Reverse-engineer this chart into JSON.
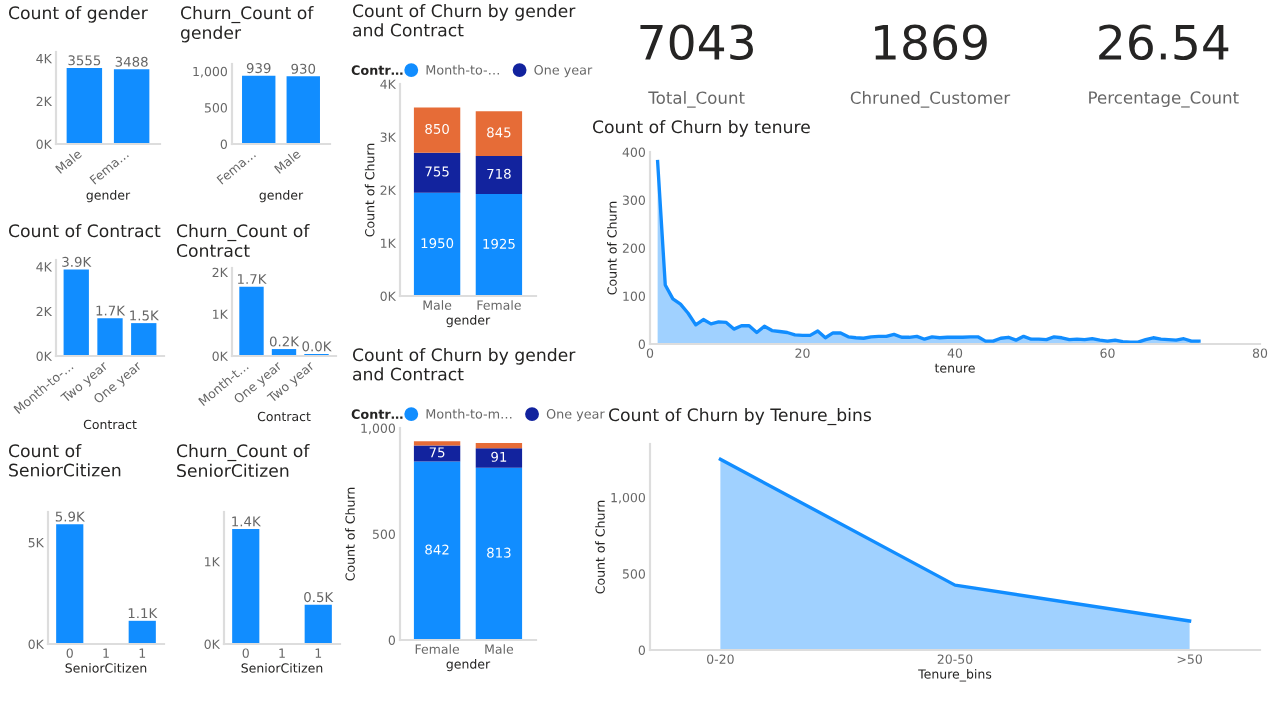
{
  "chart_data": [
    {
      "type": "bar",
      "title": "Count of gender",
      "xlabel": "gender",
      "categories": [
        "Male",
        "Fema…"
      ],
      "values": [
        3555,
        3488
      ],
      "color": "#118dff",
      "data_labels": true,
      "ylim": [
        0,
        4300
      ],
      "yticks": [
        {
          "value": 0,
          "label": "0K"
        },
        {
          "value": 2000,
          "label": "2K"
        },
        {
          "value": 4000,
          "label": "4K"
        }
      ]
    },
    {
      "type": "bar",
      "title": "Churn_Count of\ngender",
      "xlabel": "gender",
      "categories": [
        "Fema…",
        "Male"
      ],
      "values": [
        939,
        930
      ],
      "color": "#118dff",
      "data_labels": true,
      "ylim": [
        0,
        1100
      ],
      "yticks": [
        0,
        500,
        {
          "value": 1000,
          "label": "1,000"
        }
      ]
    },
    {
      "type": "bar",
      "title": "Count of Contract",
      "xlabel": "Contract",
      "categories": [
        "Month-to-…",
        "Two year",
        "One year"
      ],
      "values": [
        3875,
        1695,
        1473
      ],
      "value_labels": [
        "3.9K",
        "1.7K",
        "1.5K"
      ],
      "color": "#118dff",
      "ylim": [
        0,
        4300
      ],
      "yticks": [
        {
          "value": 0,
          "label": "0K"
        },
        {
          "value": 2000,
          "label": "2K"
        },
        {
          "value": 4000,
          "label": "4K"
        }
      ]
    },
    {
      "type": "bar",
      "title": "Churn_Count of\nContract",
      "xlabel": "Contract",
      "categories": [
        "Month-t…",
        "One year",
        "Two year"
      ],
      "values": [
        1655,
        166,
        48
      ],
      "value_labels": [
        "1.7K",
        "0.2K",
        "0.0K"
      ],
      "color": "#118dff",
      "ylim": [
        0,
        2100
      ],
      "yticks": [
        {
          "value": 0,
          "label": "0K"
        },
        {
          "value": 1000,
          "label": "1K"
        },
        {
          "value": 2000,
          "label": "2K"
        }
      ]
    },
    {
      "type": "bar",
      "title": "Count of\nSeniorCitizen",
      "xlabel": "SeniorCitizen",
      "categories": [
        "0",
        "1",
        "1"
      ],
      "values": [
        5901,
        null,
        1142
      ],
      "value_labels": [
        "5.9K",
        null,
        "1.1K"
      ],
      "color": "#118dff",
      "ylim": [
        0,
        6500
      ],
      "yticks": [
        {
          "value": 0,
          "label": "0K"
        },
        {
          "value": 5000,
          "label": "5K"
        }
      ]
    },
    {
      "type": "bar",
      "title": "Churn_Count of\nSeniorCitizen",
      "xlabel": "SeniorCitizen",
      "categories": [
        "0",
        "1",
        "1"
      ],
      "values": [
        1393,
        null,
        476
      ],
      "value_labels": [
        "1.4K",
        null,
        "0.5K"
      ],
      "color": "#118dff",
      "ylim": [
        0,
        1600
      ],
      "yticks": [
        {
          "value": 0,
          "label": "0K"
        },
        {
          "value": 1000,
          "label": "1K"
        }
      ]
    },
    {
      "type": "bar",
      "stacked": true,
      "title": "Count of Churn by gender\nand Contract",
      "xlabel": "gender",
      "ylabel": "Count of Churn",
      "legend": "top",
      "legend_title": "Contr…",
      "data_labels": true,
      "categories": [
        "Male",
        "Female"
      ],
      "ylim": [
        0,
        4000
      ],
      "yticks": [
        {
          "value": 0,
          "label": "0K"
        },
        {
          "value": 1000,
          "label": "1K"
        },
        {
          "value": 2000,
          "label": "2K"
        },
        {
          "value": 3000,
          "label": "3K"
        },
        {
          "value": 4000,
          "label": "4K"
        }
      ],
      "series": [
        {
          "name": "Month-to-…",
          "color": "#118dff",
          "values": [
            1950,
            1925
          ]
        },
        {
          "name": "One year",
          "color": "#12239e",
          "values": [
            755,
            718
          ]
        },
        {
          "color": "#e66c37",
          "values": [
            850,
            845
          ]
        }
      ]
    },
    {
      "type": "bar",
      "stacked": true,
      "title": "Count of Churn by gender\nand Contract",
      "xlabel": "gender",
      "ylabel": "Count of Churn",
      "legend": "top",
      "legend_title": "Contr…",
      "categories": [
        "Female",
        "Male"
      ],
      "ylim": [
        0,
        1000
      ],
      "yticks": [
        0,
        500,
        {
          "value": 1000,
          "label": "1,000"
        }
      ],
      "series": [
        {
          "name": "Month-to-m…",
          "color": "#118dff",
          "values": [
            842,
            813
          ],
          "value_labels": [
            "842",
            "813"
          ]
        },
        {
          "name": "One year",
          "color": "#12239e",
          "values": [
            75,
            91
          ],
          "value_labels": [
            "75",
            "91"
          ]
        },
        {
          "color": "#e66c37",
          "values": [
            20,
            25
          ]
        }
      ]
    },
    {
      "type": "other",
      "annotations": [
        "7043",
        "Total_Count",
        "1869",
        "Chruned_Customer",
        "26.54",
        "Percentage_Count"
      ]
    },
    {
      "type": "area",
      "title": "Count of Churn by tenure",
      "xlabel": "tenure",
      "ylabel": "Count of Churn",
      "color": "#118dff",
      "x": [
        1,
        2,
        3,
        4,
        5,
        6,
        7,
        8,
        9,
        10,
        11,
        12,
        13,
        14,
        15,
        16,
        17,
        18,
        19,
        20,
        21,
        22,
        23,
        24,
        25,
        26,
        27,
        28,
        29,
        30,
        31,
        32,
        33,
        34,
        35,
        36,
        37,
        38,
        39,
        40,
        41,
        42,
        43,
        44,
        45,
        46,
        47,
        48,
        49,
        50,
        51,
        52,
        53,
        54,
        55,
        56,
        57,
        58,
        59,
        60,
        61,
        62,
        63,
        64,
        65,
        66,
        67,
        68,
        69,
        70,
        71,
        72
      ],
      "values": [
        380,
        123,
        94,
        83,
        64,
        40,
        51,
        42,
        46,
        45,
        31,
        38,
        38,
        24,
        37,
        28,
        26,
        24,
        19,
        18,
        18,
        27,
        13,
        23,
        23,
        15,
        13,
        12,
        15,
        16,
        16,
        20,
        14,
        14,
        16,
        10,
        15,
        13,
        14,
        14,
        14,
        15,
        15,
        6,
        6,
        12,
        14,
        8,
        16,
        10,
        10,
        9,
        15,
        13,
        9,
        10,
        9,
        11,
        8,
        6,
        8,
        5,
        4,
        4,
        9,
        13,
        10,
        9,
        8,
        11,
        6,
        6
      ],
      "xlim": [
        0,
        80
      ],
      "xticks": [
        0,
        20,
        40,
        60,
        80
      ],
      "ylim": [
        0,
        400
      ],
      "yticks": [
        0,
        100,
        200,
        300,
        400
      ]
    },
    {
      "type": "area",
      "title": "Count of Churn by Tenure_bins",
      "xlabel": "Tenure_bins",
      "ylabel": "Count of Churn",
      "color": "#118dff",
      "categories": [
        "0-20",
        "20-50",
        ">50"
      ],
      "values": [
        1250,
        425,
        190
      ],
      "ylim": [
        0,
        1350
      ],
      "yticks": [
        0,
        500,
        {
          "value": 1000,
          "label": "1,000"
        }
      ]
    }
  ]
}
